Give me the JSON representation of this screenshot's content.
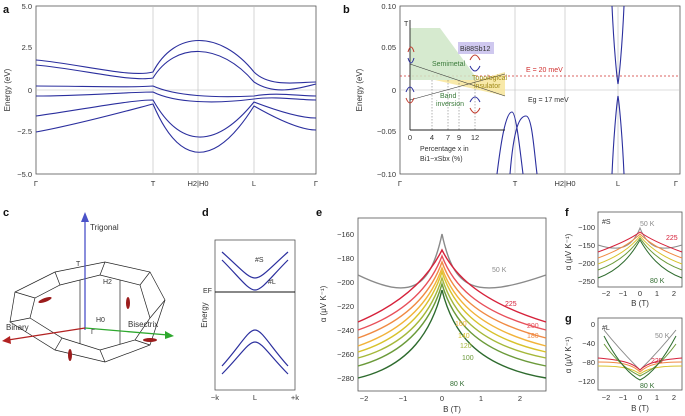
{
  "panels": {
    "a": {
      "label": "a",
      "ylabel": "Energy (eV)",
      "yticks": [
        "5.0",
        "2.5",
        "0",
        "−2.5",
        "−5.0"
      ],
      "xticks": [
        "Γ",
        "T",
        "H2|H0",
        "L",
        "Γ"
      ]
    },
    "b": {
      "label": "b",
      "ylabel": "Energy (eV)",
      "yticks": [
        "0.10",
        "0.05",
        "0",
        "−0.05",
        "−0.10"
      ],
      "xticks": [
        "Γ",
        "T",
        "H2|H0",
        "L",
        "Γ"
      ],
      "e_line": "E = 20 meV",
      "gap": "Eg = 17 meV",
      "inset": {
        "t_axis": "T",
        "semimetal": "Semimetal",
        "band_inversion": "Band\ninversion",
        "topo": "Topological\ninsulator",
        "compound": "Bi88Sb12",
        "xticks": [
          "0",
          "4",
          "7",
          "9",
          "12"
        ],
        "xlabel": "Percentage x in",
        "xlabel2": "Bi1−xSbx (%)"
      }
    },
    "c": {
      "label": "c",
      "trigonal": "Trigonal",
      "binary": "Binary",
      "bisectrix": "Bisectrix",
      "points": [
        "T",
        "H2",
        "H0",
        "Γ"
      ]
    },
    "d": {
      "label": "d",
      "ylabel": "Energy",
      "ef": "EF",
      "s": "#S",
      "l": "#L",
      "xticks": [
        "−k",
        "L",
        "+k"
      ]
    },
    "e": {
      "label": "e",
      "ylabel": "α (μV K⁻¹)",
      "xlabel": "B (T)",
      "yticks": [
        "−160",
        "−180",
        "−200",
        "−220",
        "−240",
        "−260",
        "−280"
      ],
      "xticks": [
        "−2",
        "−1",
        "0",
        "1",
        "2"
      ],
      "temps": [
        "50 K",
        "225",
        "200",
        "180",
        "160",
        "140",
        "120",
        "100",
        "80 K"
      ]
    },
    "f": {
      "label": "f",
      "tag": "#S",
      "ylabel": "α (μV K⁻¹)",
      "xlabel": "B (T)",
      "yticks": [
        "−100",
        "−150",
        "−200",
        "−250"
      ],
      "xticks": [
        "−2",
        "−1",
        "0",
        "1",
        "2"
      ],
      "t_top": "50 K",
      "t_hot": "225",
      "t_low": "80 K"
    },
    "g": {
      "label": "g",
      "tag": "#L",
      "ylabel": "α (μV K⁻¹)",
      "xlabel": "B (T)",
      "yticks": [
        "0",
        "−40",
        "−80",
        "−120"
      ],
      "xticks": [
        "−2",
        "−1",
        "0",
        "1",
        "2"
      ],
      "t_top": "50 K",
      "t_hot": "225",
      "t_low": "80 K"
    }
  },
  "colors": {
    "band": "#2b2f9e",
    "grid": "#bbbbbb",
    "e_line": "#d0302f",
    "temps": [
      "#8a8a8a",
      "#d6213a",
      "#e8505a",
      "#f08a43",
      "#f2b33a",
      "#d8c22c",
      "#a5b83a",
      "#6b9a3a",
      "#2e6b2e"
    ]
  }
}
